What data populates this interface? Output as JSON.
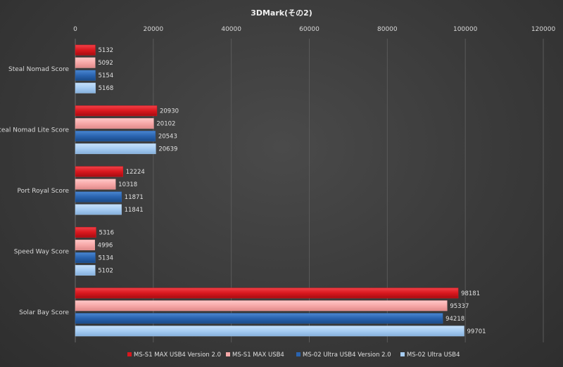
{
  "chart_data": {
    "type": "bar",
    "orientation": "horizontal",
    "title": "3DMark(その2)",
    "xlim": [
      0,
      120000
    ],
    "xticks": [
      0,
      20000,
      40000,
      60000,
      80000,
      100000,
      120000
    ],
    "tick_labels": [
      "0",
      "20000",
      "40000",
      "60000",
      "80000",
      "100000",
      "120000"
    ],
    "grid": true,
    "legend_position": "bottom",
    "categories": [
      "Steal Nomad Score",
      "Steal Nomad Lite Score",
      "Port Royal Score",
      "Speed Way Score",
      "Solar Bay Score"
    ],
    "series": [
      {
        "name": "MS-S1 MAX USB4 Version 2.0",
        "color": "#d9181e",
        "values": [
          5132,
          20930,
          12224,
          5316,
          98181
        ],
        "labels": [
          "5132",
          "20930",
          "12224",
          "5316",
          "98181"
        ]
      },
      {
        "name": "MS-S1 MAX USB4",
        "color": "#f7a8a8",
        "values": [
          5092,
          20102,
          10318,
          4996,
          95337
        ],
        "labels": [
          "5092",
          "20102",
          "10318",
          "4996",
          "95337"
        ]
      },
      {
        "name": "MS-02 Ultra USB4 Version 2.0",
        "color": "#2a64b0",
        "values": [
          5154,
          20543,
          11871,
          5134,
          94218
        ],
        "labels": [
          "5154",
          "20543",
          "11871",
          "5134",
          "94218"
        ]
      },
      {
        "name": "MS-02 Ultra USB4",
        "color": "#a6ccf2",
        "values": [
          5168,
          20639,
          11841,
          5102,
          99701
        ],
        "labels": [
          "5168",
          "20639",
          "11841",
          "5102",
          "99701"
        ]
      }
    ]
  }
}
